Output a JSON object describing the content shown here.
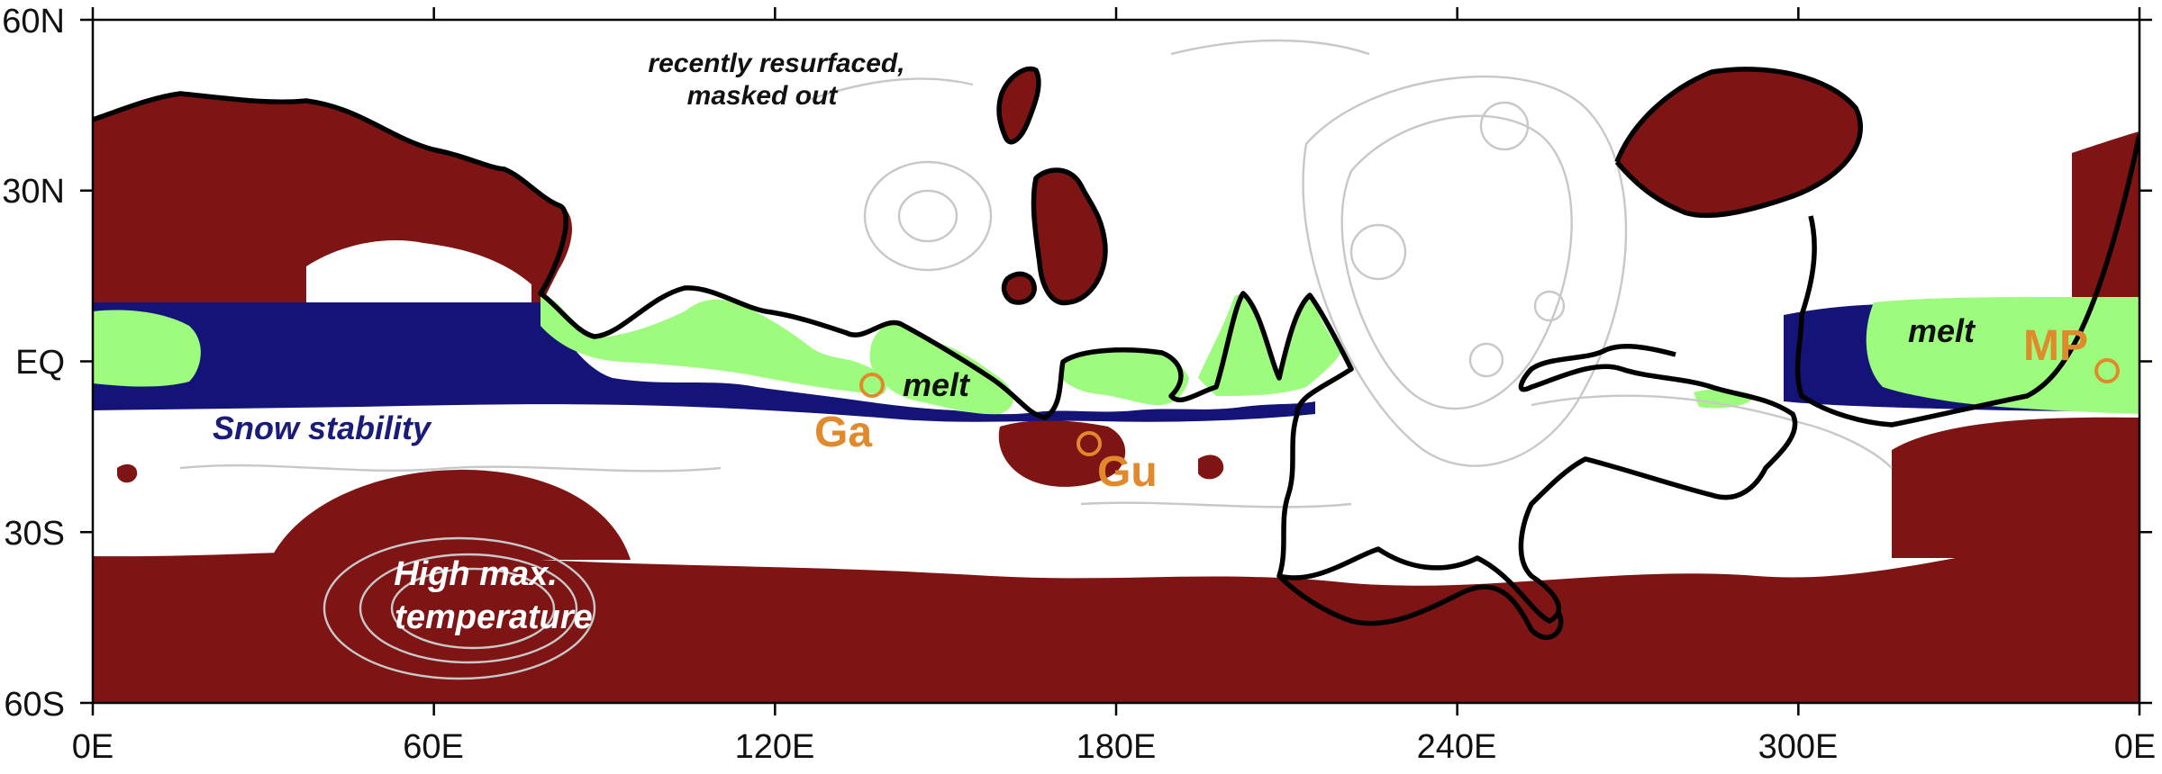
{
  "axes": {
    "y_ticks": [
      "60N",
      "30N",
      "EQ",
      "30S",
      "60S"
    ],
    "x_ticks": [
      "0E",
      "60E",
      "120E",
      "180E",
      "240E",
      "300E",
      "0E"
    ]
  },
  "regions": {
    "masked": "recently resurfaced,",
    "masked_line2": "masked out",
    "snow": "Snow stability",
    "melt": "melt",
    "melt_east": "melt",
    "hot_line1": "High max.",
    "hot_line2": "temperature"
  },
  "sites": [
    {
      "label": "Ga",
      "lon": 137,
      "lat": -5
    },
    {
      "label": "Gu",
      "lon": 175,
      "lat": -14
    },
    {
      "label": "MP",
      "lon": 354,
      "lat": -2
    }
  ],
  "colors": {
    "hot": "#7f1414",
    "snow": "#141478",
    "melt": "#9dfb7d",
    "contour": "#c8c8c8",
    "boundary": "#000000",
    "site": "#e08a2c"
  }
}
